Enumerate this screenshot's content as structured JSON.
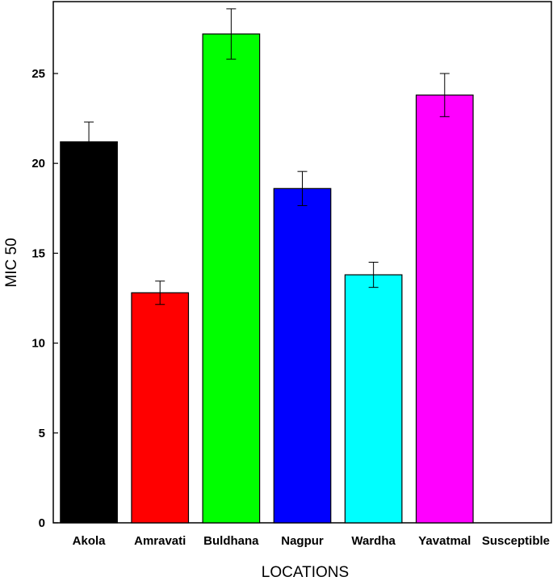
{
  "chart_data": {
    "type": "bar",
    "categories": [
      "Akola",
      "Amravati",
      "Buldhana",
      "Nagpur",
      "Wardha",
      "Yavatmal",
      "Susceptible"
    ],
    "values": [
      21.2,
      12.8,
      27.2,
      18.6,
      13.8,
      23.8,
      0
    ],
    "errors": [
      1.1,
      0.65,
      1.4,
      0.95,
      0.7,
      1.2,
      0
    ],
    "colors": [
      "#000000",
      "#ff0000",
      "#00ff00",
      "#0000ff",
      "#00ffff",
      "#ff00ff",
      "#ffffff"
    ],
    "xlabel": "LOCATIONS",
    "ylabel": "MIC 50",
    "ylim": [
      0,
      29
    ],
    "yticks": [
      0,
      5,
      10,
      15,
      20,
      25
    ],
    "grid": false,
    "legend": "none"
  }
}
